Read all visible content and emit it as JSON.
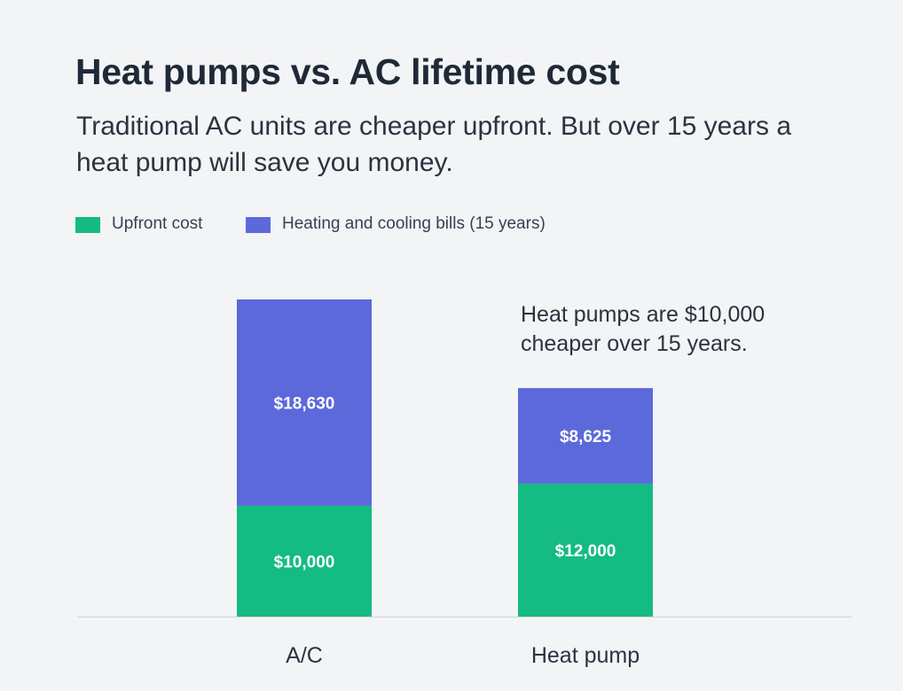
{
  "title": "Heat pumps vs. AC lifetime cost",
  "subtitle": "Traditional AC units are cheaper upfront. But over 15 years a heat pump will save you money.",
  "annotation": "Heat pumps are $10,000 cheaper over 15 years.",
  "colors": {
    "upfront": "#14bb82",
    "bills": "#5c69db",
    "background": "#f3f4f6",
    "axis": "#cfd3d8",
    "bar_label": "#ffffff"
  },
  "chart_data": {
    "type": "bar",
    "stacked": true,
    "categories": [
      "A/C",
      "Heat pump"
    ],
    "series": [
      {
        "name": "Upfront cost",
        "values": [
          10000,
          12000
        ],
        "labels": [
          "$10,000",
          "$12,000"
        ]
      },
      {
        "name": "Heating and cooling bills (15 years)",
        "values": [
          18630,
          8625
        ],
        "labels": [
          "$18,630",
          "$8,625"
        ]
      }
    ],
    "ylim": [
      0,
      28630
    ],
    "grid": false,
    "legend_position": "top-left"
  }
}
